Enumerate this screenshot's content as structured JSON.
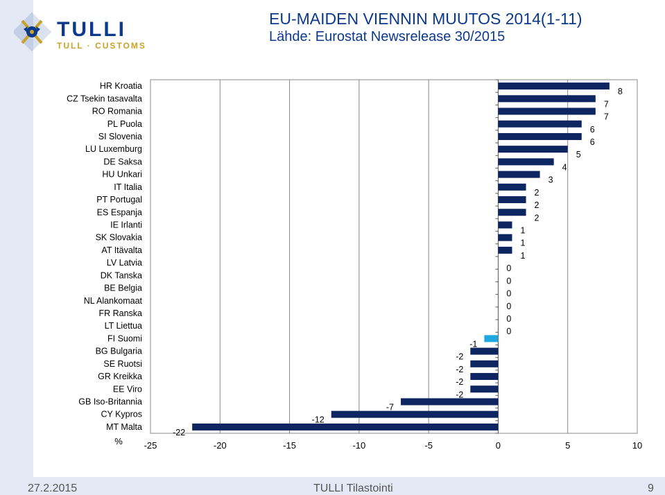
{
  "header": {
    "title": "EU-MAIDEN VIENNIN MUUTOS 2014(1-11)",
    "subtitle": "Lähde: Eurostat Newsrelease 30/2015"
  },
  "logo": {
    "name": "TULLI",
    "tagline": "TULL · CUSTOMS"
  },
  "footer": {
    "date": "27.2.2015",
    "center": "TULLI Tilastointi",
    "page": "9"
  },
  "colors": {
    "bar": "#0d2560",
    "highlight": "#1fa8e0",
    "header": "#0b3a8c"
  },
  "chart_data": {
    "type": "bar",
    "orientation": "horizontal",
    "unit_label": "%",
    "categories": [
      "HR Kroatia",
      "CZ Tsekin tasavalta",
      "RO Romania",
      "PL Puola",
      "SI Slovenia",
      "LU Luxemburg",
      "DE Saksa",
      "HU Unkari",
      "IT Italia",
      "PT Portugal",
      "ES Espanja",
      "IE Irlanti",
      "SK Slovakia",
      "AT Itävalta",
      "LV Latvia",
      "DK Tanska",
      "BE Belgia",
      "NL Alankomaat",
      "FR Ranska",
      "LT Liettua",
      "FI Suomi",
      "BG Bulgaria",
      "SE Ruotsi",
      "GR Kreikka",
      "EE Viro",
      "GB Iso-Britannia",
      "CY Kypros",
      "MT Malta"
    ],
    "values": [
      8,
      7,
      7,
      6,
      6,
      5,
      4,
      3,
      2,
      2,
      2,
      1,
      1,
      1,
      0,
      0,
      0,
      0,
      0,
      0,
      -1,
      -2,
      -2,
      -2,
      -2,
      -7,
      -12,
      -22
    ],
    "highlight": "FI Suomi",
    "xlim": [
      -25,
      10
    ],
    "xticks": [
      -25,
      -20,
      -15,
      -10,
      -5,
      0,
      5,
      10
    ],
    "grid": "vertical"
  }
}
